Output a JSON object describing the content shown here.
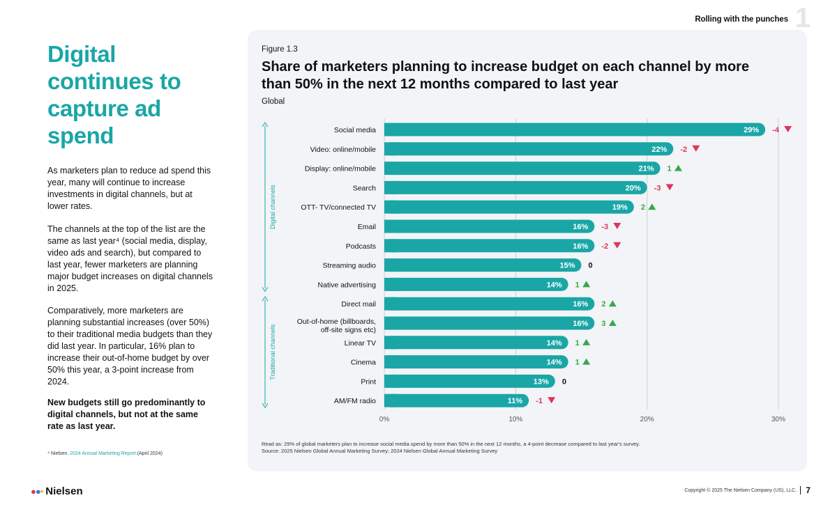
{
  "header": {
    "section": "Rolling with the punches",
    "chapter": "1"
  },
  "left": {
    "headline": "Digital continues to capture ad spend",
    "paragraphs": [
      "As marketers plan to reduce ad spend this year, many will continue to increase investments in digital channels, but at lower rates.",
      "The channels at the top of the list are the same as last year⁴ (social media, display, video ads and search), but compared to last year, fewer marketers are planning major budget increases on digital channels in 2025.",
      "Comparatively, more marketers are planning substantial increases (over 50%) to their traditional media budgets than they did last year. In particular, 16% plan to increase their out-of-home budget by over 50% this year, a 3-point increase from 2024.",
      "New budgets still go predominantly to digital channels, but not at the same rate as last year."
    ],
    "footnote_prefix": "⁴ Nielsen.",
    "footnote_link": "2024 Annual Marketing Report",
    "footnote_suffix": "(April 2024)"
  },
  "figure": {
    "label": "Figure 1.3",
    "title": "Share of marketers planning to increase budget on each channel by more than 50% in the next 12 months compared to last year",
    "subtitle": "Global",
    "read_as": "Read as: 29% of global marketers plan to increase social media spend by more than 50% in the next 12 months, a 4-point decrease compared to last year's survey.",
    "source": "Source: 2025 Nielsen Global Annual Marketing Survey; 2024 Nielsen Global Annual Marketing Survey"
  },
  "chart_data": {
    "type": "bar",
    "orientation": "horizontal",
    "title": "Share of marketers planning to increase budget on each channel by more than 50% in the next 12 months compared to last year",
    "subtitle": "Global",
    "categories": [
      "Social media",
      "Video: online/mobile",
      "Display: online/mobile",
      "Search",
      "OTT- TV/connected TV",
      "Email",
      "Podcasts",
      "Streaming audio",
      "Native advertising",
      "Direct mail",
      "Out-of-home (billboards, off-site signs etc)",
      "Linear TV",
      "Cinema",
      "Print",
      "AM/FM radio"
    ],
    "values": [
      29,
      22,
      21,
      20,
      19,
      16,
      16,
      15,
      14,
      16,
      16,
      14,
      14,
      13,
      11
    ],
    "value_labels": [
      "29%",
      "22%",
      "21%",
      "20%",
      "19%",
      "16%",
      "16%",
      "15%",
      "14%",
      "16%",
      "16%",
      "14%",
      "14%",
      "13%",
      "11%"
    ],
    "changes": [
      -4,
      -2,
      1,
      -3,
      2,
      -3,
      -2,
      0,
      1,
      2,
      3,
      1,
      1,
      0,
      -1
    ],
    "change_labels": [
      "-4",
      "-2",
      "1",
      "-3",
      "2",
      "-3",
      "-2",
      "0",
      "1",
      "2",
      "3",
      "1",
      "1",
      "0",
      "-1"
    ],
    "groups": [
      {
        "name": "Digital channels",
        "start": 0,
        "end": 8
      },
      {
        "name": "Traditional channels",
        "start": 9,
        "end": 14
      }
    ],
    "xlim": [
      0,
      30
    ],
    "ticks": [
      0,
      10,
      20,
      30
    ],
    "tick_labels": [
      "0%",
      "10%",
      "20%",
      "30%"
    ],
    "unit": "%",
    "grid": true,
    "colors": {
      "bar": "#1aa6a6",
      "up": "#3aa64c",
      "down": "#e0345a",
      "neutral": "#111111",
      "grid": "#c9ced6"
    }
  },
  "footer": {
    "brand": "Nielsen",
    "copyright": "Copyright © 2025 The Nielsen Company (US), LLC.",
    "page": "7"
  }
}
